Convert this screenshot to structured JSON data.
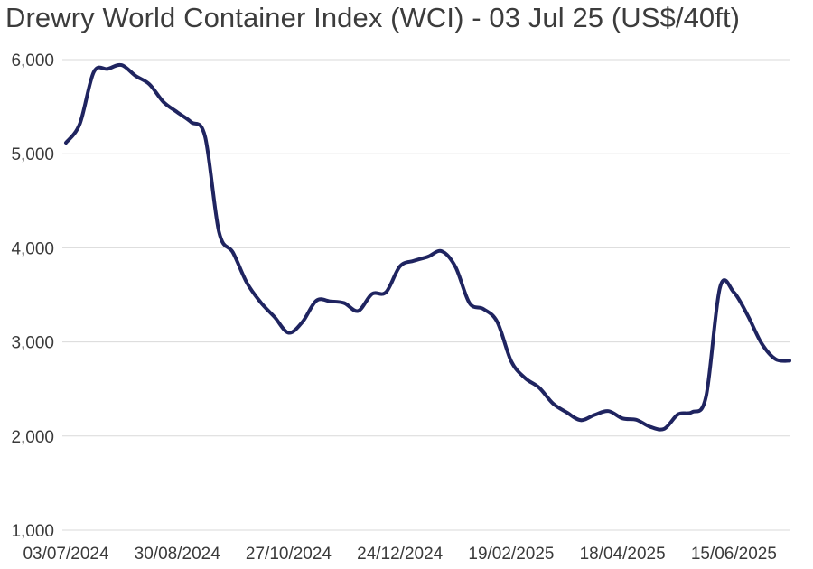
{
  "title": "Drewry World Container Index (WCI) - 03 Jul 25 (US$/40ft)",
  "colors": {
    "line": "#1f2460",
    "grid": "#d9d9d9",
    "text": "#3a3a3a"
  },
  "chart_data": {
    "type": "line",
    "title": "Drewry World Container Index (WCI) - 03 Jul 25 (US$/40ft)",
    "xlabel": "",
    "ylabel": "",
    "ylim": [
      1000,
      6000
    ],
    "yticks": [
      1000,
      2000,
      3000,
      4000,
      5000,
      6000
    ],
    "ytick_labels": [
      "1,000",
      "2,000",
      "3,000",
      "4,000",
      "5,000",
      "6,000"
    ],
    "xtick_labels": [
      "03/07/2024",
      "30/08/2024",
      "27/10/2024",
      "24/12/2024",
      "19/02/2025",
      "18/04/2025",
      "15/06/2025"
    ],
    "xtick_indices": [
      0,
      8,
      16,
      24,
      32,
      40,
      48
    ],
    "grid": true,
    "legend": "none",
    "x": [
      "04/07/2024",
      "11/07/2024",
      "18/07/2024",
      "25/07/2024",
      "01/08/2024",
      "08/08/2024",
      "15/08/2024",
      "22/08/2024",
      "29/08/2024",
      "05/09/2024",
      "12/09/2024",
      "19/09/2024",
      "26/09/2024",
      "03/10/2024",
      "10/10/2024",
      "17/10/2024",
      "24/10/2024",
      "31/10/2024",
      "07/11/2024",
      "14/11/2024",
      "21/11/2024",
      "28/11/2024",
      "05/12/2024",
      "12/12/2024",
      "19/12/2024",
      "26/12/2024",
      "02/01/2025",
      "09/01/2025",
      "16/01/2025",
      "23/01/2025",
      "30/01/2025",
      "06/02/2025",
      "13/02/2025",
      "20/02/2025",
      "27/02/2025",
      "06/03/2025",
      "13/03/2025",
      "20/03/2025",
      "27/03/2025",
      "03/04/2025",
      "10/04/2025",
      "17/04/2025",
      "24/04/2025",
      "01/05/2025",
      "08/05/2025",
      "15/05/2025",
      "22/05/2025",
      "29/05/2025",
      "05/06/2025",
      "12/06/2025",
      "19/06/2025",
      "26/06/2025",
      "03/07/2025"
    ],
    "series": [
      {
        "name": "WCI",
        "values": [
          5117,
          5319,
          5868,
          5901,
          5942,
          5828,
          5738,
          5551,
          5441,
          5336,
          5181,
          4168,
          3951,
          3629,
          3420,
          3263,
          3097,
          3213,
          3439,
          3431,
          3413,
          3329,
          3510,
          3528,
          3803,
          3862,
          3905,
          3964,
          3796,
          3414,
          3350,
          3212,
          2795,
          2616,
          2515,
          2346,
          2250,
          2168,
          2225,
          2265,
          2187,
          2172,
          2097,
          2077,
          2232,
          2254,
          2420,
          3577,
          3527,
          3280,
          2983,
          2817,
          2800
        ]
      }
    ]
  }
}
